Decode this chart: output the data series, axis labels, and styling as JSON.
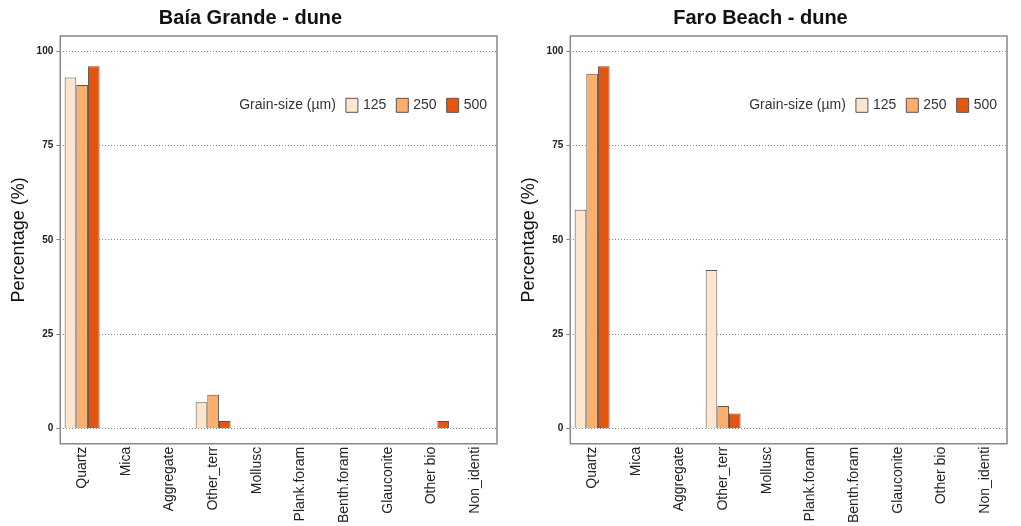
{
  "chart_data": [
    {
      "type": "bar",
      "title": "Baía Grande - dune",
      "ylabel": "Percentage (%)",
      "legend_title": "Grain-size (µm)",
      "categories": [
        "Quartz",
        "Mica",
        "Aggregate",
        "Other_terr",
        "Mollusc",
        "Plank.foram",
        "Benth.foram",
        "Glauconite",
        "Other bio",
        "Non_identi"
      ],
      "series": [
        {
          "name": "125",
          "color": "#fee6ce",
          "values": [
            93,
            0,
            0,
            7,
            0,
            0,
            0,
            0,
            0,
            0
          ]
        },
        {
          "name": "250",
          "color": "#fdae6b",
          "values": [
            91,
            0,
            0,
            9,
            0,
            0,
            0,
            0,
            0,
            0
          ]
        },
        {
          "name": "500",
          "color": "#e6550d",
          "values": [
            96,
            0,
            0,
            2,
            0,
            0,
            0,
            0,
            2,
            0
          ]
        }
      ],
      "ylim": [
        -4,
        104
      ],
      "yticks": [
        0,
        25,
        50,
        75,
        100
      ],
      "grid": "y",
      "legend": "top right"
    },
    {
      "type": "bar",
      "title": "Faro Beach - dune",
      "ylabel": "Percentage (%)",
      "legend_title": "Grain-size (µm)",
      "categories": [
        "Quartz",
        "Mica",
        "Aggregate",
        "Other_terr",
        "Mollusc",
        "Plank.foram",
        "Benth.foram",
        "Glauconite",
        "Other bio",
        "Non_identi"
      ],
      "series": [
        {
          "name": "125",
          "color": "#fee6ce",
          "values": [
            58,
            0,
            0,
            42,
            0,
            0,
            0,
            0,
            0,
            0
          ]
        },
        {
          "name": "250",
          "color": "#fdae6b",
          "values": [
            94,
            0,
            0,
            6,
            0,
            0,
            0,
            0,
            0,
            0
          ]
        },
        {
          "name": "500",
          "color": "#e6550d",
          "values": [
            96,
            0,
            0,
            4,
            0,
            0,
            0,
            0,
            0,
            0
          ]
        }
      ],
      "ylim": [
        -4,
        104
      ],
      "yticks": [
        0,
        25,
        50,
        75,
        100
      ],
      "grid": "y",
      "legend": "top right"
    }
  ]
}
